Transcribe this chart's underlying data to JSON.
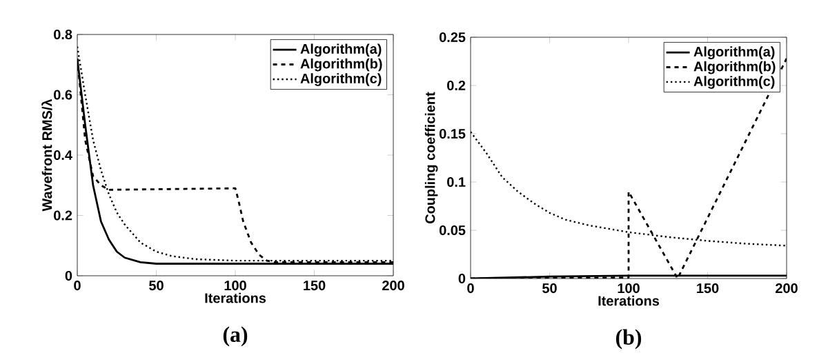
{
  "chart_data": [
    {
      "type": "line",
      "xlabel": "Iterations",
      "ylabel": "Wavefront RMS/λ",
      "annotations": [
        "(a)"
      ],
      "xlim": [
        0,
        200
      ],
      "ylim": [
        0,
        0.8
      ],
      "xticks": [
        0,
        50,
        100,
        150,
        200
      ],
      "yticks": [
        0,
        0.2,
        0.4,
        0.6,
        0.8
      ],
      "legend": "top right",
      "grid": false,
      "series": [
        {
          "name": "Algorithm(a)",
          "color": "#000000",
          "line_style": "solid",
          "x": [
            0,
            5,
            10,
            15,
            20,
            25,
            30,
            40,
            50,
            200
          ],
          "values": [
            0.72,
            0.5,
            0.3,
            0.18,
            0.12,
            0.08,
            0.06,
            0.045,
            0.04,
            0.04
          ]
        },
        {
          "name": "Algorithm(b)",
          "color": "#000000",
          "line_style": "dashed",
          "x": [
            0,
            5,
            10,
            15,
            20,
            100,
            102,
            105,
            110,
            115,
            120,
            125,
            200
          ],
          "values": [
            0.72,
            0.45,
            0.33,
            0.3,
            0.285,
            0.29,
            0.25,
            0.18,
            0.11,
            0.07,
            0.05,
            0.045,
            0.045
          ]
        },
        {
          "name": "Algorithm(c)",
          "color": "#000000",
          "line_style": "dotted",
          "x": [
            0,
            5,
            10,
            15,
            20,
            25,
            30,
            40,
            50,
            60,
            75,
            100,
            150,
            200
          ],
          "values": [
            0.76,
            0.6,
            0.45,
            0.35,
            0.27,
            0.21,
            0.17,
            0.11,
            0.08,
            0.065,
            0.055,
            0.05,
            0.05,
            0.05
          ]
        }
      ]
    },
    {
      "type": "line",
      "xlabel": "Iterations",
      "ylabel": "Coupling coefficient",
      "annotations": [
        "(b)"
      ],
      "xlim": [
        0,
        200
      ],
      "ylim": [
        0,
        0.25
      ],
      "xticks": [
        0,
        50,
        100,
        150,
        200
      ],
      "yticks": [
        0,
        0.05,
        0.1,
        0.15,
        0.2,
        0.25
      ],
      "legend": "top right",
      "grid": false,
      "series": [
        {
          "name": "Algorithm(a)",
          "color": "#000000",
          "line_style": "solid",
          "x": [
            0,
            50,
            100,
            200
          ],
          "values": [
            0,
            0.002,
            0.003,
            0.003
          ]
        },
        {
          "name": "Algorithm(b)",
          "color": "#000000",
          "line_style": "dashed",
          "x": [
            0,
            100,
            100,
            131,
            200
          ],
          "values": [
            0,
            0.001,
            0.09,
            0,
            0.228
          ]
        },
        {
          "name": "Algorithm(c)",
          "color": "#000000",
          "line_style": "dotted",
          "x": [
            0,
            10,
            20,
            30,
            40,
            50,
            60,
            75,
            100,
            125,
            150,
            175,
            200
          ],
          "values": [
            0.152,
            0.13,
            0.105,
            0.09,
            0.078,
            0.068,
            0.061,
            0.055,
            0.048,
            0.043,
            0.039,
            0.036,
            0.034
          ]
        }
      ]
    }
  ]
}
